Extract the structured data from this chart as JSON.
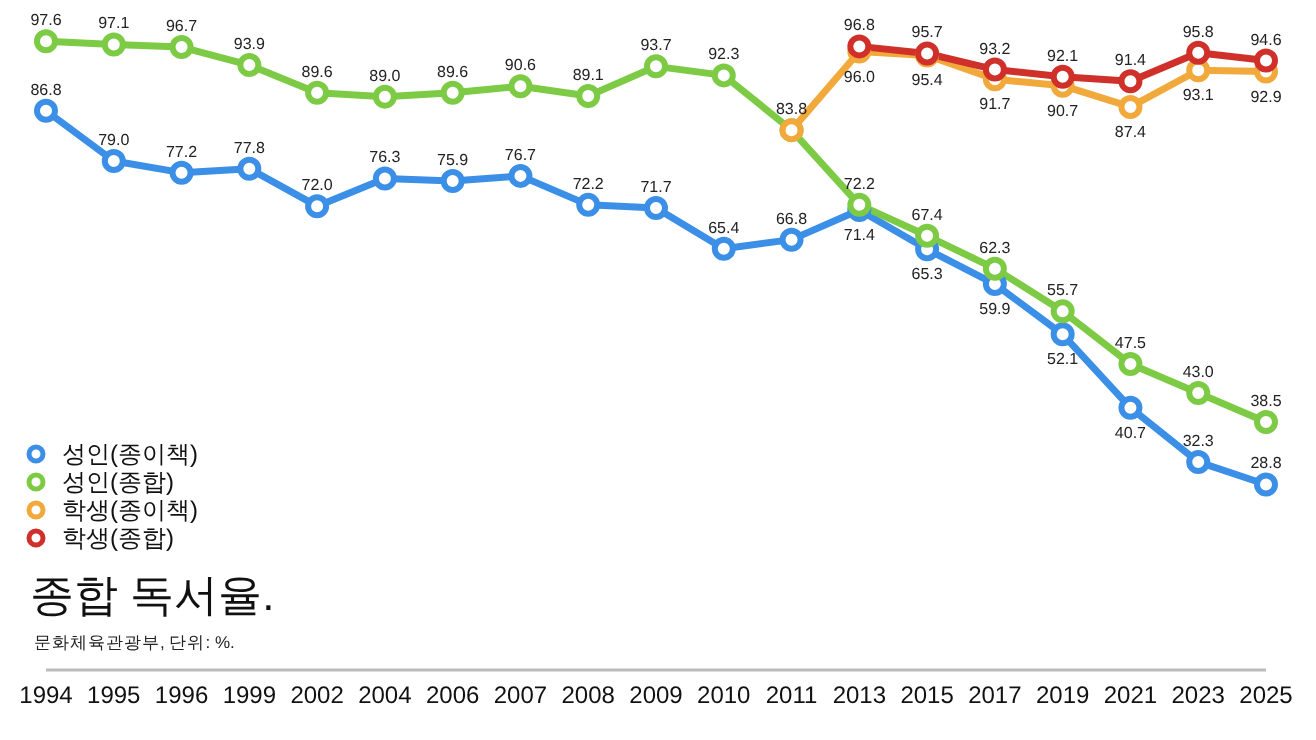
{
  "chart_data": {
    "type": "line",
    "title": "종합 독서율.",
    "annotations": [
      "문화체육관광부, 단위: %."
    ],
    "categories": [
      "1994",
      "1995",
      "1996",
      "1999",
      "2002",
      "2004",
      "2006",
      "2007",
      "2008",
      "2009",
      "2010",
      "2011",
      "2013",
      "2015",
      "2017",
      "2019",
      "2021",
      "2023",
      "2025"
    ],
    "series": [
      {
        "name": "성인(종이책)",
        "color": "#3b8fe6",
        "values": [
          86.8,
          79.0,
          77.2,
          77.8,
          72.0,
          76.3,
          75.9,
          76.7,
          72.2,
          71.7,
          65.4,
          66.8,
          71.4,
          65.3,
          59.9,
          52.1,
          40.7,
          32.3,
          28.8
        ],
        "value_labels": [
          "86.8",
          "79.0",
          "77.2",
          "77.8",
          "72.0",
          "76.3",
          "75.9",
          "76.7",
          "72.2",
          "71.7",
          "65.4",
          "66.8",
          "71.4",
          "65.3",
          "59.9",
          "52.1",
          "40.7",
          "32.3",
          "28.8"
        ]
      },
      {
        "name": "성인(종합)",
        "color": "#7dcb45",
        "values": [
          97.6,
          97.1,
          96.7,
          93.9,
          89.6,
          89.0,
          89.6,
          90.6,
          89.1,
          93.7,
          92.3,
          83.8,
          72.2,
          67.4,
          62.3,
          55.7,
          47.5,
          43.0,
          38.5
        ],
        "value_labels": [
          "97.6",
          "97.1",
          "96.7",
          "93.9",
          "89.6",
          "89.0",
          "89.6",
          "90.6",
          "89.1",
          "93.7",
          "92.3",
          "83.8",
          "72.2",
          "67.4",
          "62.3",
          "55.7",
          "47.5",
          "43.0",
          "38.5"
        ]
      },
      {
        "name": "학생(종이책)",
        "color": "#f2a93b",
        "values": [
          null,
          null,
          null,
          null,
          null,
          null,
          null,
          null,
          null,
          null,
          null,
          83.8,
          96.0,
          95.4,
          91.7,
          90.7,
          87.4,
          93.1,
          92.9
        ],
        "value_labels": [
          null,
          null,
          null,
          null,
          null,
          null,
          null,
          null,
          null,
          null,
          null,
          null,
          "96.0",
          "95.4",
          "91.7",
          "90.7",
          "87.4",
          "93.1",
          "92.9"
        ]
      },
      {
        "name": "학생(종합)",
        "color": "#d0302a",
        "values": [
          null,
          null,
          null,
          null,
          null,
          null,
          null,
          null,
          null,
          null,
          null,
          null,
          96.8,
          95.7,
          93.2,
          92.1,
          91.4,
          95.8,
          94.6
        ],
        "value_labels": [
          null,
          null,
          null,
          null,
          null,
          null,
          null,
          null,
          null,
          null,
          null,
          null,
          "96.8",
          "95.7",
          "93.2",
          "92.1",
          "91.4",
          "95.8",
          "94.6"
        ]
      }
    ],
    "ylim": [
      0,
      104
    ],
    "tick_labels": "x",
    "grid": false,
    "legend": "left",
    "marker": "circle",
    "line_style": "solid"
  }
}
